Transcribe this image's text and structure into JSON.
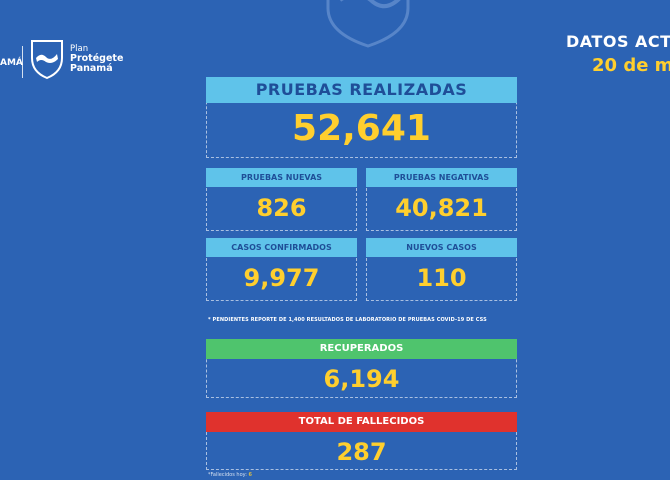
{
  "branding": {
    "left_text": "AMÁ",
    "plan_line1": "Plan",
    "plan_line2": "Protégete",
    "plan_line3": "Panamá"
  },
  "header": {
    "title": "DATOS ACT",
    "date": "20 de m"
  },
  "pruebas_realizadas": {
    "label": "PRUEBAS REALIZADAS",
    "value": "52,641"
  },
  "pruebas_nuevas": {
    "label": "PRUEBAS NUEVAS",
    "value": "826"
  },
  "pruebas_negativas": {
    "label": "PRUEBAS NEGATIVAS",
    "value": "40,821"
  },
  "casos_confirmados": {
    "label": "CASOS CONFIRMADOS",
    "value": "9,977"
  },
  "nuevos_casos": {
    "label": "NUEVOS CASOS",
    "value": "110"
  },
  "note": "* PENDIENTES REPORTE DE 1,400 RESULTADOS DE LABORATORIO DE PRUEBAS COVID-19  DE CSS",
  "recuperados": {
    "label": "RECUPERADOS",
    "value": "6,194"
  },
  "fallecidos": {
    "label": "TOTAL DE FALLECIDOS",
    "value": "287"
  },
  "footnote": {
    "label": "*Fallecidos hoy:",
    "value": "6"
  },
  "colors": {
    "background": "#2c63b4",
    "value_yellow": "#ffcf2e",
    "header_blue": "#5fc3ea",
    "header_green": "#4fc46d",
    "header_red": "#e0322d"
  }
}
